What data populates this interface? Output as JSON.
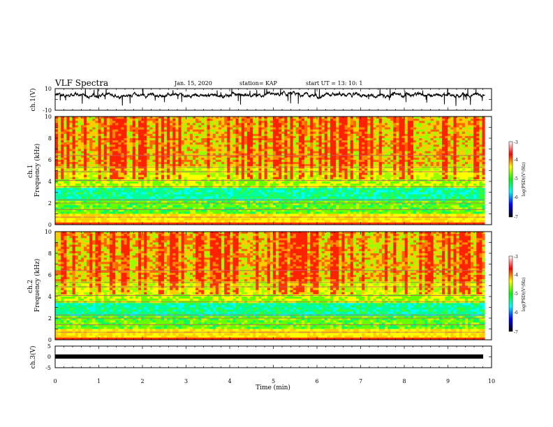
{
  "header": {
    "title": "VLF Spectra",
    "date": "Jan. 15, 2020",
    "station": "station= KAP",
    "start_ut": "start UT =   13: 10: 1"
  },
  "colors": {
    "waveform": "#000000",
    "colormap": [
      "#000000",
      "#0000ff",
      "#00ffff",
      "#00ff00",
      "#ffff00",
      "#ff0000",
      "#ffffff"
    ]
  },
  "chart_data": [
    {
      "type": "line",
      "ylabel": "ch.1(V)",
      "ylim": [
        -10,
        10
      ],
      "yticks": [
        "10",
        "-10"
      ],
      "xlim": [
        0,
        10
      ],
      "data_end_min": 9.85,
      "baseline": 4,
      "series": [
        {
          "description_y": "waveform voltage",
          "style": "noisy trace around +4 V"
        }
      ]
    },
    {
      "type": "heatmap",
      "ylabel": "ch.1\nFrequency (kHz)",
      "ylim": [
        0,
        10
      ],
      "yticks": [
        "0",
        "2",
        "4",
        "6",
        "8",
        "10"
      ],
      "xlim": [
        0,
        10
      ],
      "colorbar": {
        "label": "log(PSD)(V²/Hz)",
        "range": [
          -7,
          -3
        ],
        "ticks": [
          "-3",
          "-4",
          "-5",
          "-6",
          "-7"
        ]
      }
    },
    {
      "type": "heatmap",
      "ylabel": "ch.2\nFrequency (kHz)",
      "ylim": [
        0,
        10
      ],
      "yticks": [
        "0",
        "2",
        "4",
        "6",
        "8",
        "10"
      ],
      "xlim": [
        0,
        10
      ],
      "colorbar": {
        "label": "log(PSD)(V²/Hz)",
        "range": [
          -7,
          -3
        ],
        "ticks": [
          "-3",
          "-4",
          "-5",
          "-6",
          "-7"
        ]
      }
    },
    {
      "type": "line",
      "ylabel": "ch.3(V)",
      "ylim": [
        -5,
        5
      ],
      "yticks": [
        "5",
        "0",
        "-5"
      ],
      "xlim": [
        0,
        10
      ],
      "data_end_min": 9.85,
      "series": [
        {
          "description_y": "flat band near -1 V",
          "style": "thick black band"
        }
      ],
      "xlabel": "Time (min)",
      "xticks": [
        "0",
        "1",
        "2",
        "3",
        "4",
        "5",
        "6",
        "7",
        "8",
        "9",
        "10"
      ]
    }
  ]
}
